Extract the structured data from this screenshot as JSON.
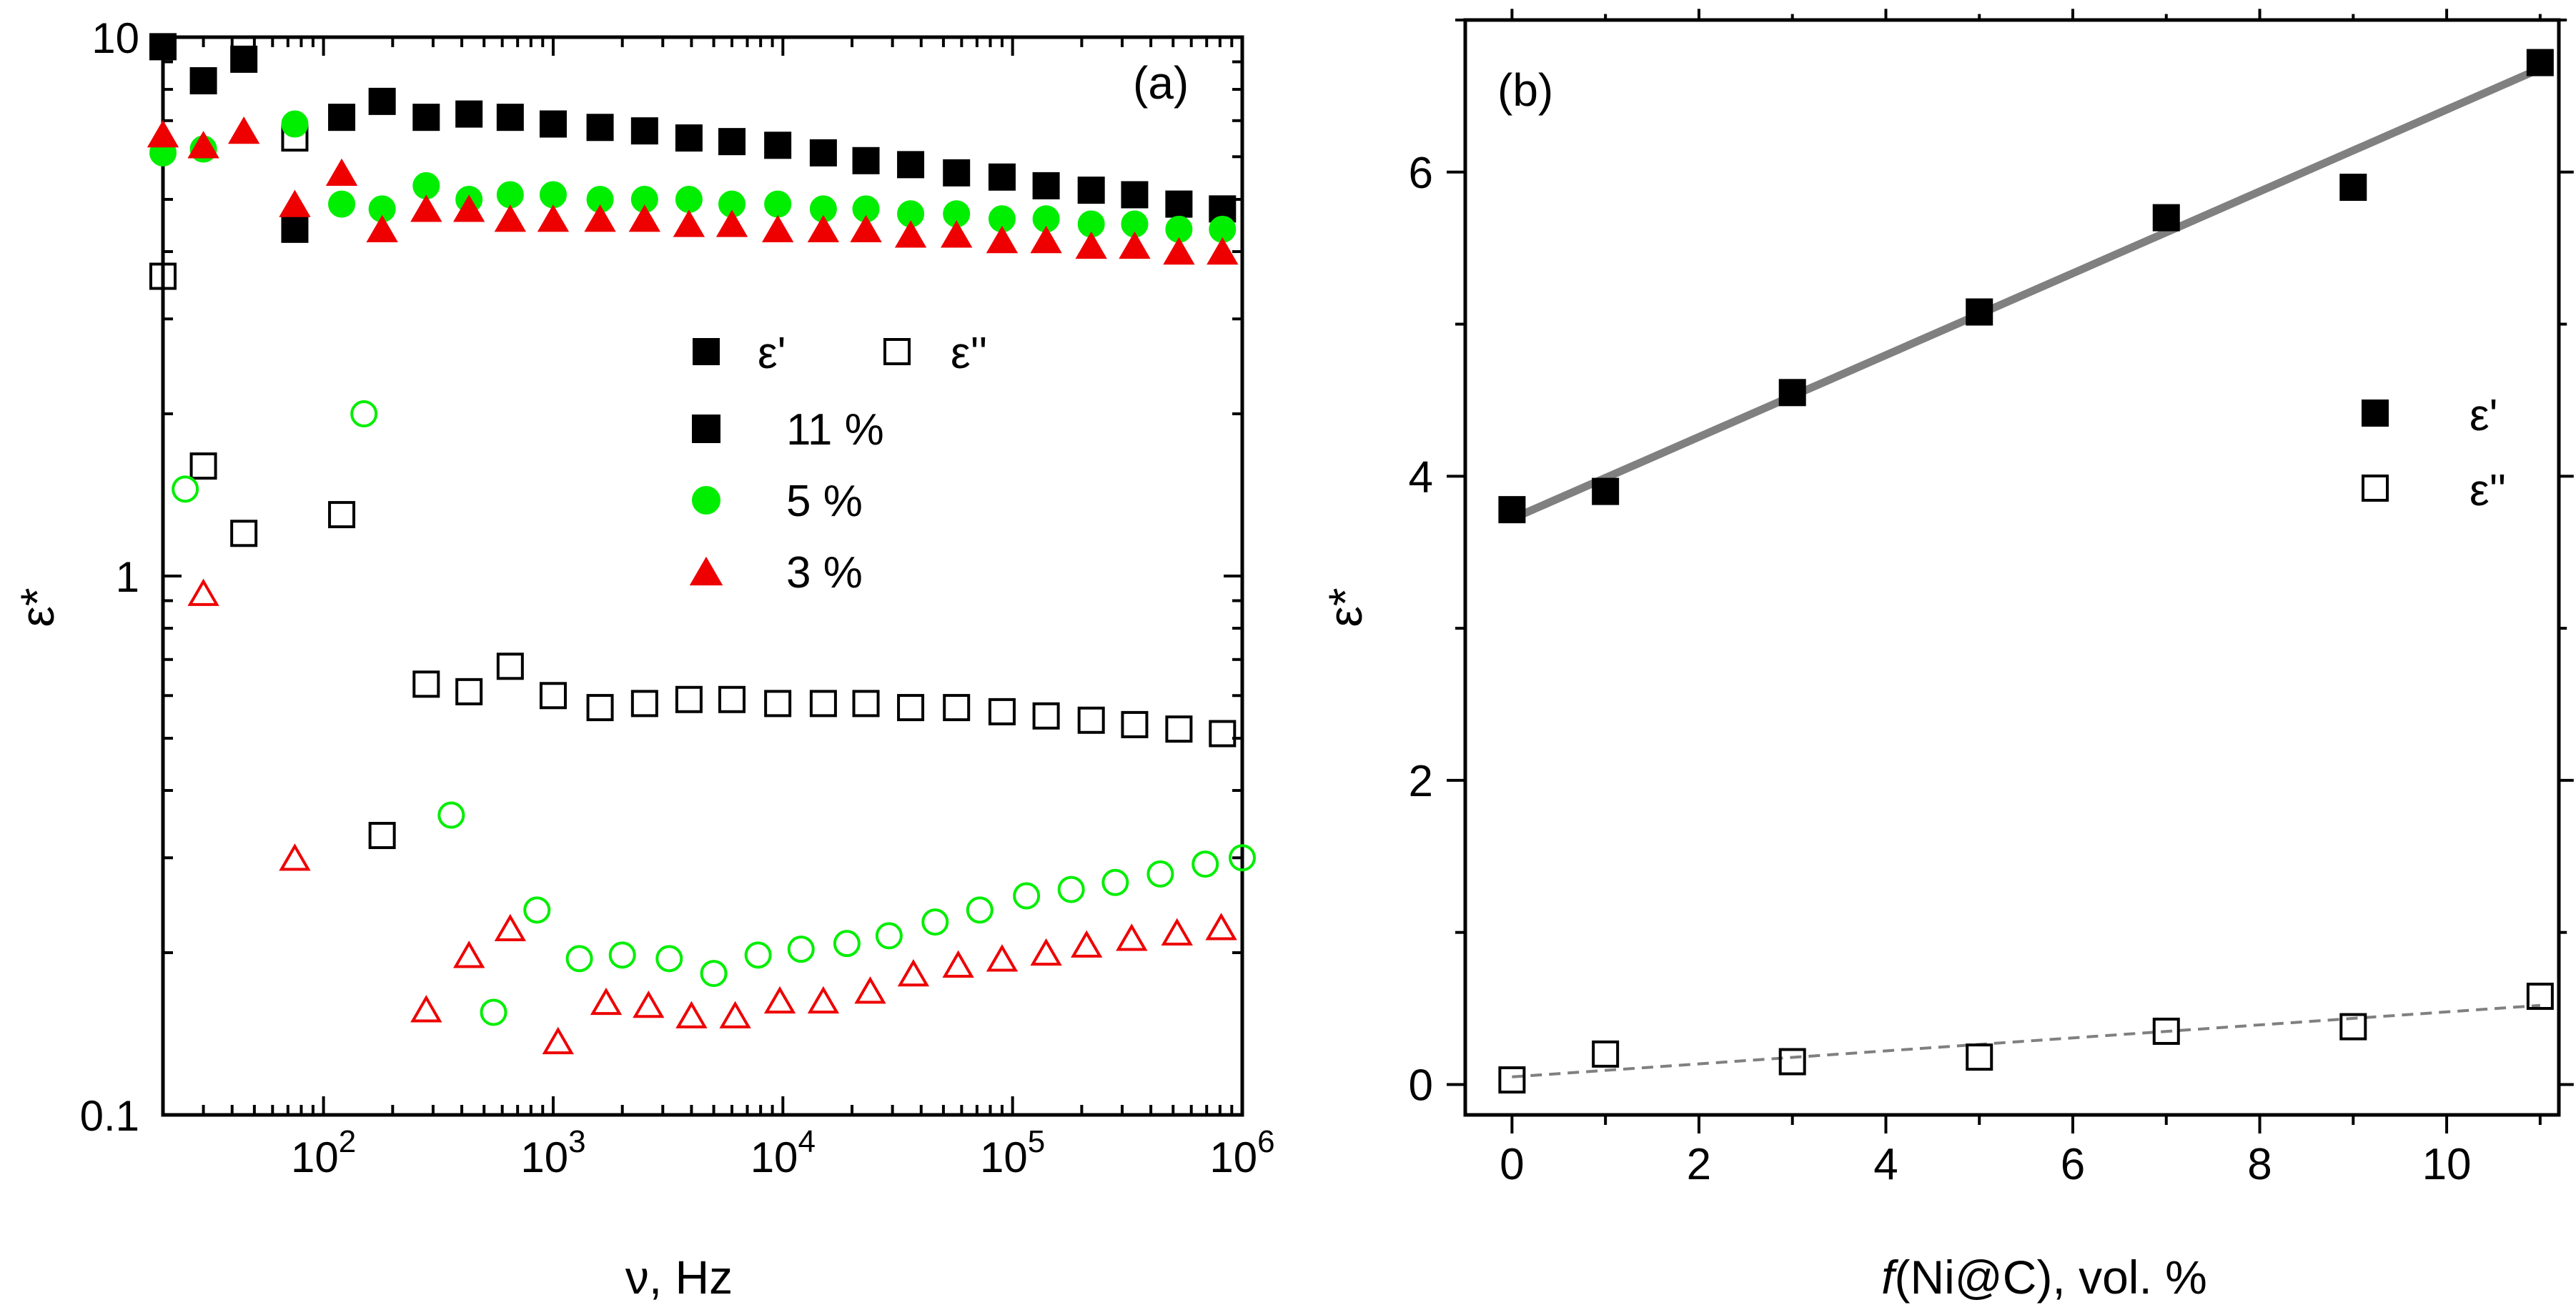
{
  "chart_data": [
    {
      "panel": "(a)",
      "type": "scatter",
      "xscale": "log",
      "yscale": "log",
      "xlabel": "ν, Hz",
      "ylabel": "ε*",
      "xlim": [
        20,
        1000000
      ],
      "ylim": [
        0.1,
        10
      ],
      "x_ticks": [
        {
          "value": 100,
          "base": "10",
          "exp": "2"
        },
        {
          "value": 1000,
          "base": "10",
          "exp": "3"
        },
        {
          "value": 10000,
          "base": "10",
          "exp": "4"
        },
        {
          "value": 100000,
          "base": "10",
          "exp": "5"
        },
        {
          "value": 1000000,
          "base": "10",
          "exp": "6"
        }
      ],
      "y_ticks": [
        {
          "value": 0.1,
          "label": "0.1"
        },
        {
          "value": 1,
          "label": "1"
        },
        {
          "value": 10,
          "label": "10"
        }
      ],
      "legend": {
        "header": [
          {
            "marker": "square",
            "filled": true,
            "label": "ε'"
          },
          {
            "marker": "square",
            "filled": false,
            "label": "ε''"
          }
        ],
        "entries": [
          {
            "label": "11 %",
            "color": "#000000",
            "marker": "square"
          },
          {
            "label": "5 %",
            "color": "#00ee00",
            "marker": "circle"
          },
          {
            "label": "3 %",
            "color": "#ee0000",
            "marker": "triangle"
          }
        ]
      },
      "series": [
        {
          "name": "ε' 11 %",
          "marker": "square",
          "filled": true,
          "color": "#000000",
          "x": [
            20,
            30,
            45,
            75,
            120,
            180,
            280,
            430,
            650,
            1000,
            1600,
            2500,
            3900,
            6000,
            9500,
            15000,
            23000,
            36000,
            57000,
            90000,
            140000,
            220000,
            340000,
            530000,
            820000
          ],
          "y": [
            9.6,
            8.3,
            9.1,
            4.4,
            7.1,
            7.6,
            7.1,
            7.2,
            7.1,
            6.9,
            6.8,
            6.7,
            6.5,
            6.4,
            6.3,
            6.1,
            5.9,
            5.8,
            5.6,
            5.5,
            5.3,
            5.2,
            5.1,
            4.9,
            4.8
          ]
        },
        {
          "name": "ε'' 11 %",
          "marker": "square",
          "filled": false,
          "color": "#000000",
          "x": [
            20,
            30,
            45,
            75,
            120,
            180,
            280,
            430,
            650,
            1000,
            1600,
            2500,
            3900,
            6000,
            9500,
            15000,
            23000,
            36000,
            57000,
            90000,
            140000,
            220000,
            340000,
            530000,
            820000
          ],
          "y": [
            3.6,
            1.6,
            1.2,
            6.5,
            1.3,
            0.33,
            0.63,
            0.61,
            0.68,
            0.6,
            0.57,
            0.58,
            0.59,
            0.59,
            0.58,
            0.58,
            0.58,
            0.57,
            0.57,
            0.56,
            0.55,
            0.54,
            0.53,
            0.52,
            0.51
          ]
        },
        {
          "name": "ε' 5 %",
          "marker": "circle",
          "filled": true,
          "color": "#00ee00",
          "x": [
            20,
            30,
            75,
            120,
            180,
            280,
            430,
            650,
            1000,
            1600,
            2500,
            3900,
            6000,
            9500,
            15000,
            23000,
            36000,
            57000,
            90000,
            140000,
            220000,
            340000,
            530000,
            820000
          ],
          "y": [
            6.1,
            6.2,
            6.9,
            4.9,
            4.8,
            5.3,
            5.0,
            5.1,
            5.1,
            5.0,
            5.0,
            5.0,
            4.9,
            4.9,
            4.8,
            4.8,
            4.7,
            4.7,
            4.6,
            4.6,
            4.5,
            4.5,
            4.4,
            4.4
          ]
        },
        {
          "name": "ε'' 5 %",
          "marker": "circle",
          "filled": false,
          "color": "#00ee00",
          "x": [
            25,
            150,
            360,
            550,
            850,
            1300,
            2000,
            3200,
            5000,
            7800,
            12000,
            19000,
            29000,
            46000,
            72000,
            115000,
            180000,
            280000,
            440000,
            690000,
            1000000
          ],
          "y": [
            1.45,
            2.0,
            0.36,
            0.155,
            0.24,
            0.195,
            0.198,
            0.195,
            0.183,
            0.198,
            0.203,
            0.208,
            0.215,
            0.228,
            0.24,
            0.255,
            0.262,
            0.27,
            0.28,
            0.292,
            0.3
          ]
        },
        {
          "name": "ε' 3 %",
          "marker": "triangle",
          "filled": true,
          "color": "#ee0000",
          "x": [
            20,
            30,
            45,
            75,
            120,
            180,
            280,
            430,
            650,
            1000,
            1600,
            2500,
            3900,
            6000,
            9500,
            15000,
            23000,
            36000,
            57000,
            90000,
            140000,
            220000,
            340000,
            530000,
            820000
          ],
          "y": [
            6.6,
            6.3,
            6.7,
            4.9,
            5.6,
            4.4,
            4.8,
            4.8,
            4.6,
            4.6,
            4.6,
            4.6,
            4.5,
            4.5,
            4.4,
            4.4,
            4.4,
            4.3,
            4.3,
            4.2,
            4.2,
            4.1,
            4.1,
            4.0,
            4.0
          ]
        },
        {
          "name": "ε'' 3 %",
          "marker": "triangle",
          "filled": false,
          "color": "#ee0000",
          "x": [
            30,
            75,
            280,
            430,
            650,
            1050,
            1700,
            2600,
            4000,
            6200,
            9700,
            15000,
            24000,
            37000,
            58000,
            90000,
            140000,
            210000,
            330000,
            520000,
            810000
          ],
          "y": [
            0.93,
            0.3,
            0.157,
            0.198,
            0.222,
            0.137,
            0.162,
            0.16,
            0.153,
            0.153,
            0.163,
            0.163,
            0.17,
            0.183,
            0.19,
            0.195,
            0.2,
            0.207,
            0.213,
            0.218,
            0.223
          ]
        }
      ]
    },
    {
      "panel": "(b)",
      "type": "scatter",
      "xlabel_italic": "f",
      "xlabel_rest": "(Ni@C), vol. %",
      "ylabel": "ε*",
      "xlim": [
        -0.5,
        11.2
      ],
      "ylim": [
        -0.2,
        7.0
      ],
      "x_ticks": [
        0,
        2,
        4,
        6,
        8,
        10
      ],
      "y_ticks": [
        0,
        2,
        4,
        6
      ],
      "legend": [
        {
          "marker": "square",
          "filled": true,
          "label": "ε'"
        },
        {
          "marker": "square",
          "filled": false,
          "label": "ε''"
        }
      ],
      "series": [
        {
          "name": "ε'",
          "marker": "square",
          "filled": true,
          "color": "#000000",
          "x": [
            0,
            1,
            3,
            5,
            7,
            9,
            11
          ],
          "y": [
            3.78,
            3.9,
            4.55,
            5.08,
            5.7,
            5.9,
            6.72
          ]
        },
        {
          "name": "ε''",
          "marker": "square",
          "filled": false,
          "color": "#000000",
          "x": [
            0,
            1,
            3,
            5,
            7,
            9,
            11
          ],
          "y": [
            0.03,
            0.2,
            0.15,
            0.18,
            0.35,
            0.38,
            0.58
          ]
        }
      ],
      "fits": [
        {
          "name": "ε' fit",
          "style": "solid",
          "color": "#808080",
          "x": [
            0,
            11
          ],
          "y": [
            3.72,
            6.68
          ]
        },
        {
          "name": "ε'' fit",
          "style": "dashed",
          "color": "#808080",
          "x": [
            0,
            11
          ],
          "y": [
            0.05,
            0.52
          ]
        }
      ]
    }
  ]
}
